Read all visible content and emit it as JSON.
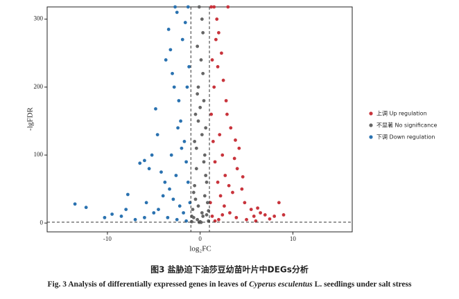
{
  "chart_data": {
    "type": "scatter",
    "x_label": "log₂FC",
    "y_label": "-lgFDR",
    "xlim": [
      -16.5,
      16.4
    ],
    "ylim": [
      -13,
      318
    ],
    "xticks": [
      -10,
      0,
      10
    ],
    "yticks": [
      0,
      100,
      200,
      300
    ],
    "vlines": [
      -1,
      1
    ],
    "hline": 1.3,
    "series": [
      {
        "name": "上调  Up regulation",
        "color": "#c8343c",
        "x": [
          8.5,
          8,
          7,
          6.5,
          5.5,
          4.5,
          4,
          3.7,
          3.3,
          4.2,
          2.8,
          2.5,
          2.3,
          2,
          1.8,
          1.5,
          3,
          1.3,
          1.2,
          1.4,
          1.6,
          1.9,
          2.2,
          2.6,
          3.2,
          3.9,
          5,
          6,
          7.5,
          1.1,
          1.3,
          1.5,
          2.1,
          2.7,
          3.5,
          4.8,
          5.8,
          2.4,
          1.7,
          1.2,
          4.6,
          3.8,
          2.9,
          1.9,
          6.2,
          2,
          1.6,
          9,
          3.1,
          2.4
        ],
        "values": [
          30,
          10,
          12,
          15,
          20,
          50,
          80,
          95,
          140,
          110,
          180,
          210,
          250,
          280,
          300,
          318,
          318,
          240,
          160,
          120,
          90,
          60,
          40,
          25,
          15,
          8,
          5,
          3,
          6,
          30,
          10,
          200,
          130,
          70,
          45,
          30,
          10,
          100,
          270,
          318,
          68,
          122,
          160,
          230,
          22,
          5,
          3,
          12,
          55,
          12
        ]
      },
      {
        "name": "不显著 No significance",
        "color": "#666666",
        "x": [
          0,
          0.2,
          -0.1,
          0.3,
          -0.3,
          0.1,
          -0.2,
          0.4,
          -0.5,
          0.6,
          -0.6,
          0.5,
          -0.4,
          0.7,
          -0.7,
          0.8,
          -0.8,
          0.3,
          -0.3,
          0.9,
          -0.9,
          0.1,
          -0.1,
          0.2,
          -0.2,
          0.5,
          -0.5,
          0.6,
          -0.6,
          0.4,
          -0.4,
          0.2,
          -0.2,
          0.3,
          -0.3,
          0,
          0.7,
          -0.7,
          0.9,
          -0.9
        ],
        "values": [
          2,
          300,
          318,
          280,
          260,
          240,
          200,
          180,
          160,
          140,
          120,
          100,
          80,
          60,
          45,
          30,
          20,
          10,
          5,
          3,
          2,
          1,
          1,
          15,
          25,
          40,
          35,
          70,
          55,
          90,
          110,
          130,
          150,
          220,
          190,
          170,
          12,
          8,
          18,
          10
        ]
      },
      {
        "name": "下调    Down regulation",
        "color": "#2a72b0",
        "x": [
          -13.5,
          -12.3,
          -9.5,
          -8.5,
          -7.8,
          -6.5,
          -6,
          -5.5,
          -5.2,
          -4.8,
          -4.6,
          -3.7,
          -3.4,
          -3.2,
          -3,
          -2.8,
          -2.5,
          -2.3,
          -2.1,
          -1.9,
          -1.7,
          -1.5,
          -1.3,
          -1.2,
          -1.1,
          -2,
          -2.6,
          -3.3,
          -4,
          -4.5,
          -5,
          -6,
          -7,
          -3.5,
          -2.5,
          -1.5,
          -1.8,
          -2.2,
          -2.9,
          -3.8,
          -4.2,
          -1.4,
          -1.6,
          -2.4,
          -3.1,
          -1.3,
          -2.7,
          -5.8,
          -8,
          -10.3
        ],
        "values": [
          28,
          23,
          13,
          10,
          42,
          88,
          92,
          80,
          100,
          168,
          130,
          240,
          285,
          255,
          220,
          200,
          310,
          180,
          150,
          270,
          120,
          90,
          60,
          230,
          30,
          110,
          70,
          50,
          40,
          20,
          15,
          8,
          5,
          8,
          5,
          3,
          15,
          25,
          35,
          60,
          75,
          200,
          295,
          140,
          100,
          318,
          318,
          30,
          20,
          8
        ]
      }
    ]
  },
  "caption_cn": "图3    盐胁迫下油莎豆幼苗叶片中DEGs分析",
  "caption_en": [
    "Fig. 3    Analysis of differentially expressed genes in leaves of ",
    "Cyperus esculentus",
    " L. seedlings under salt stress"
  ]
}
